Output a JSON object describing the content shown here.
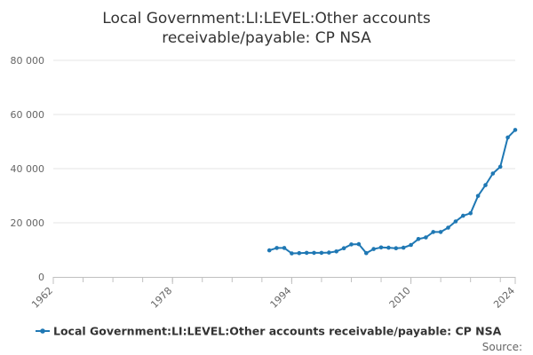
{
  "chart_data": {
    "type": "line",
    "title": "Local Government:LI:LEVEL:Other accounts receivable/payable: CP NSA",
    "title_lines": [
      "Local Government:LI:LEVEL:Other accounts",
      "receivable/payable: CP NSA"
    ],
    "xlabel": "",
    "ylabel": "",
    "xlim": [
      1962,
      2024
    ],
    "ylim": [
      0,
      80000
    ],
    "x_ticks": [
      1962,
      1978,
      1994,
      2010,
      2024
    ],
    "x_tick_labels": [
      "1962",
      "1978",
      "1994",
      "2010",
      "2024"
    ],
    "y_ticks": [
      0,
      20000,
      40000,
      60000,
      80000
    ],
    "y_tick_labels": [
      "0",
      "20 000",
      "40 000",
      "60 000",
      "80 000"
    ],
    "grid": "horizontal",
    "legend_position": "bottom",
    "series": [
      {
        "name": "Local Government:LI:LEVEL:Other accounts receivable/payable: CP NSA",
        "color": "#1f78b4",
        "x": [
          1991,
          1992,
          1993,
          1994,
          1995,
          1996,
          1997,
          1998,
          1999,
          2000,
          2001,
          2002,
          2003,
          2004,
          2005,
          2006,
          2007,
          2008,
          2009,
          2010,
          2011,
          2012,
          2013,
          2014,
          2015,
          2016,
          2017,
          2018,
          2019,
          2020,
          2021,
          2022,
          2023,
          2024
        ],
        "y": [
          9800,
          10700,
          10700,
          8700,
          8800,
          8900,
          8900,
          8900,
          9000,
          9400,
          10600,
          12000,
          12100,
          8800,
          10300,
          10900,
          10800,
          10600,
          10800,
          11800,
          14000,
          14600,
          16600,
          16600,
          18200,
          20500,
          22600,
          23500,
          29900,
          33900,
          38200,
          40700,
          51500,
          54300
        ]
      }
    ]
  },
  "legend": {
    "label": "Local Government:LI:LEVEL:Other accounts receivable/payable: CP NSA",
    "color": "#1f78b4"
  },
  "source": {
    "label": "Source:"
  }
}
